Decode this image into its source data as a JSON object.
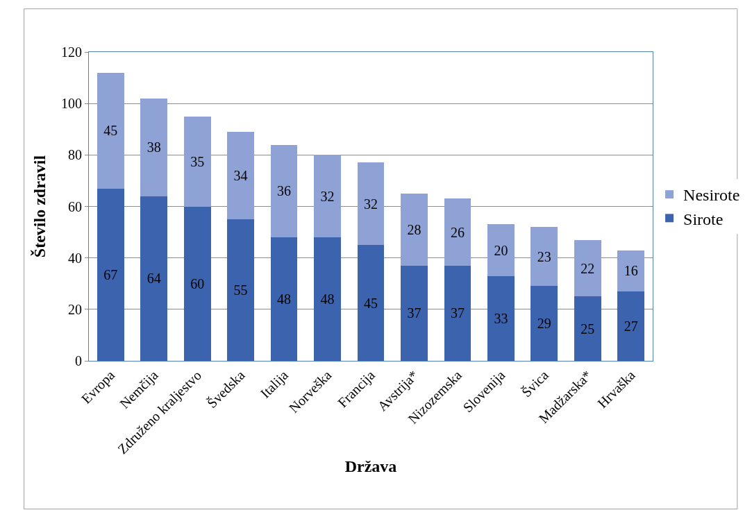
{
  "chart_data": {
    "type": "bar",
    "stacked": true,
    "xlabel": "Država",
    "ylabel": "Število zdravil",
    "categories": [
      "Evropa",
      "Nemčija",
      "Združeno kraljestvo",
      "Švedska",
      "Italija",
      "Norveška",
      "Francija",
      "Avstrija*",
      "Nizozemska",
      "Slovenija",
      "Švica",
      "Madžarska*",
      "Hrvaška"
    ],
    "series": [
      {
        "name": "Sirote",
        "color": "#3c63ad",
        "values": [
          67,
          64,
          60,
          55,
          48,
          48,
          45,
          37,
          37,
          33,
          29,
          25,
          27
        ]
      },
      {
        "name": "Nesirote",
        "color": "#8ea2d5",
        "values": [
          45,
          38,
          35,
          34,
          36,
          32,
          32,
          28,
          26,
          20,
          23,
          22,
          16
        ]
      }
    ],
    "ylim": [
      0,
      120
    ],
    "yticks": [
      0,
      20,
      40,
      60,
      80,
      100,
      120
    ],
    "grid": "y",
    "legend": "right",
    "data_labels": true
  }
}
